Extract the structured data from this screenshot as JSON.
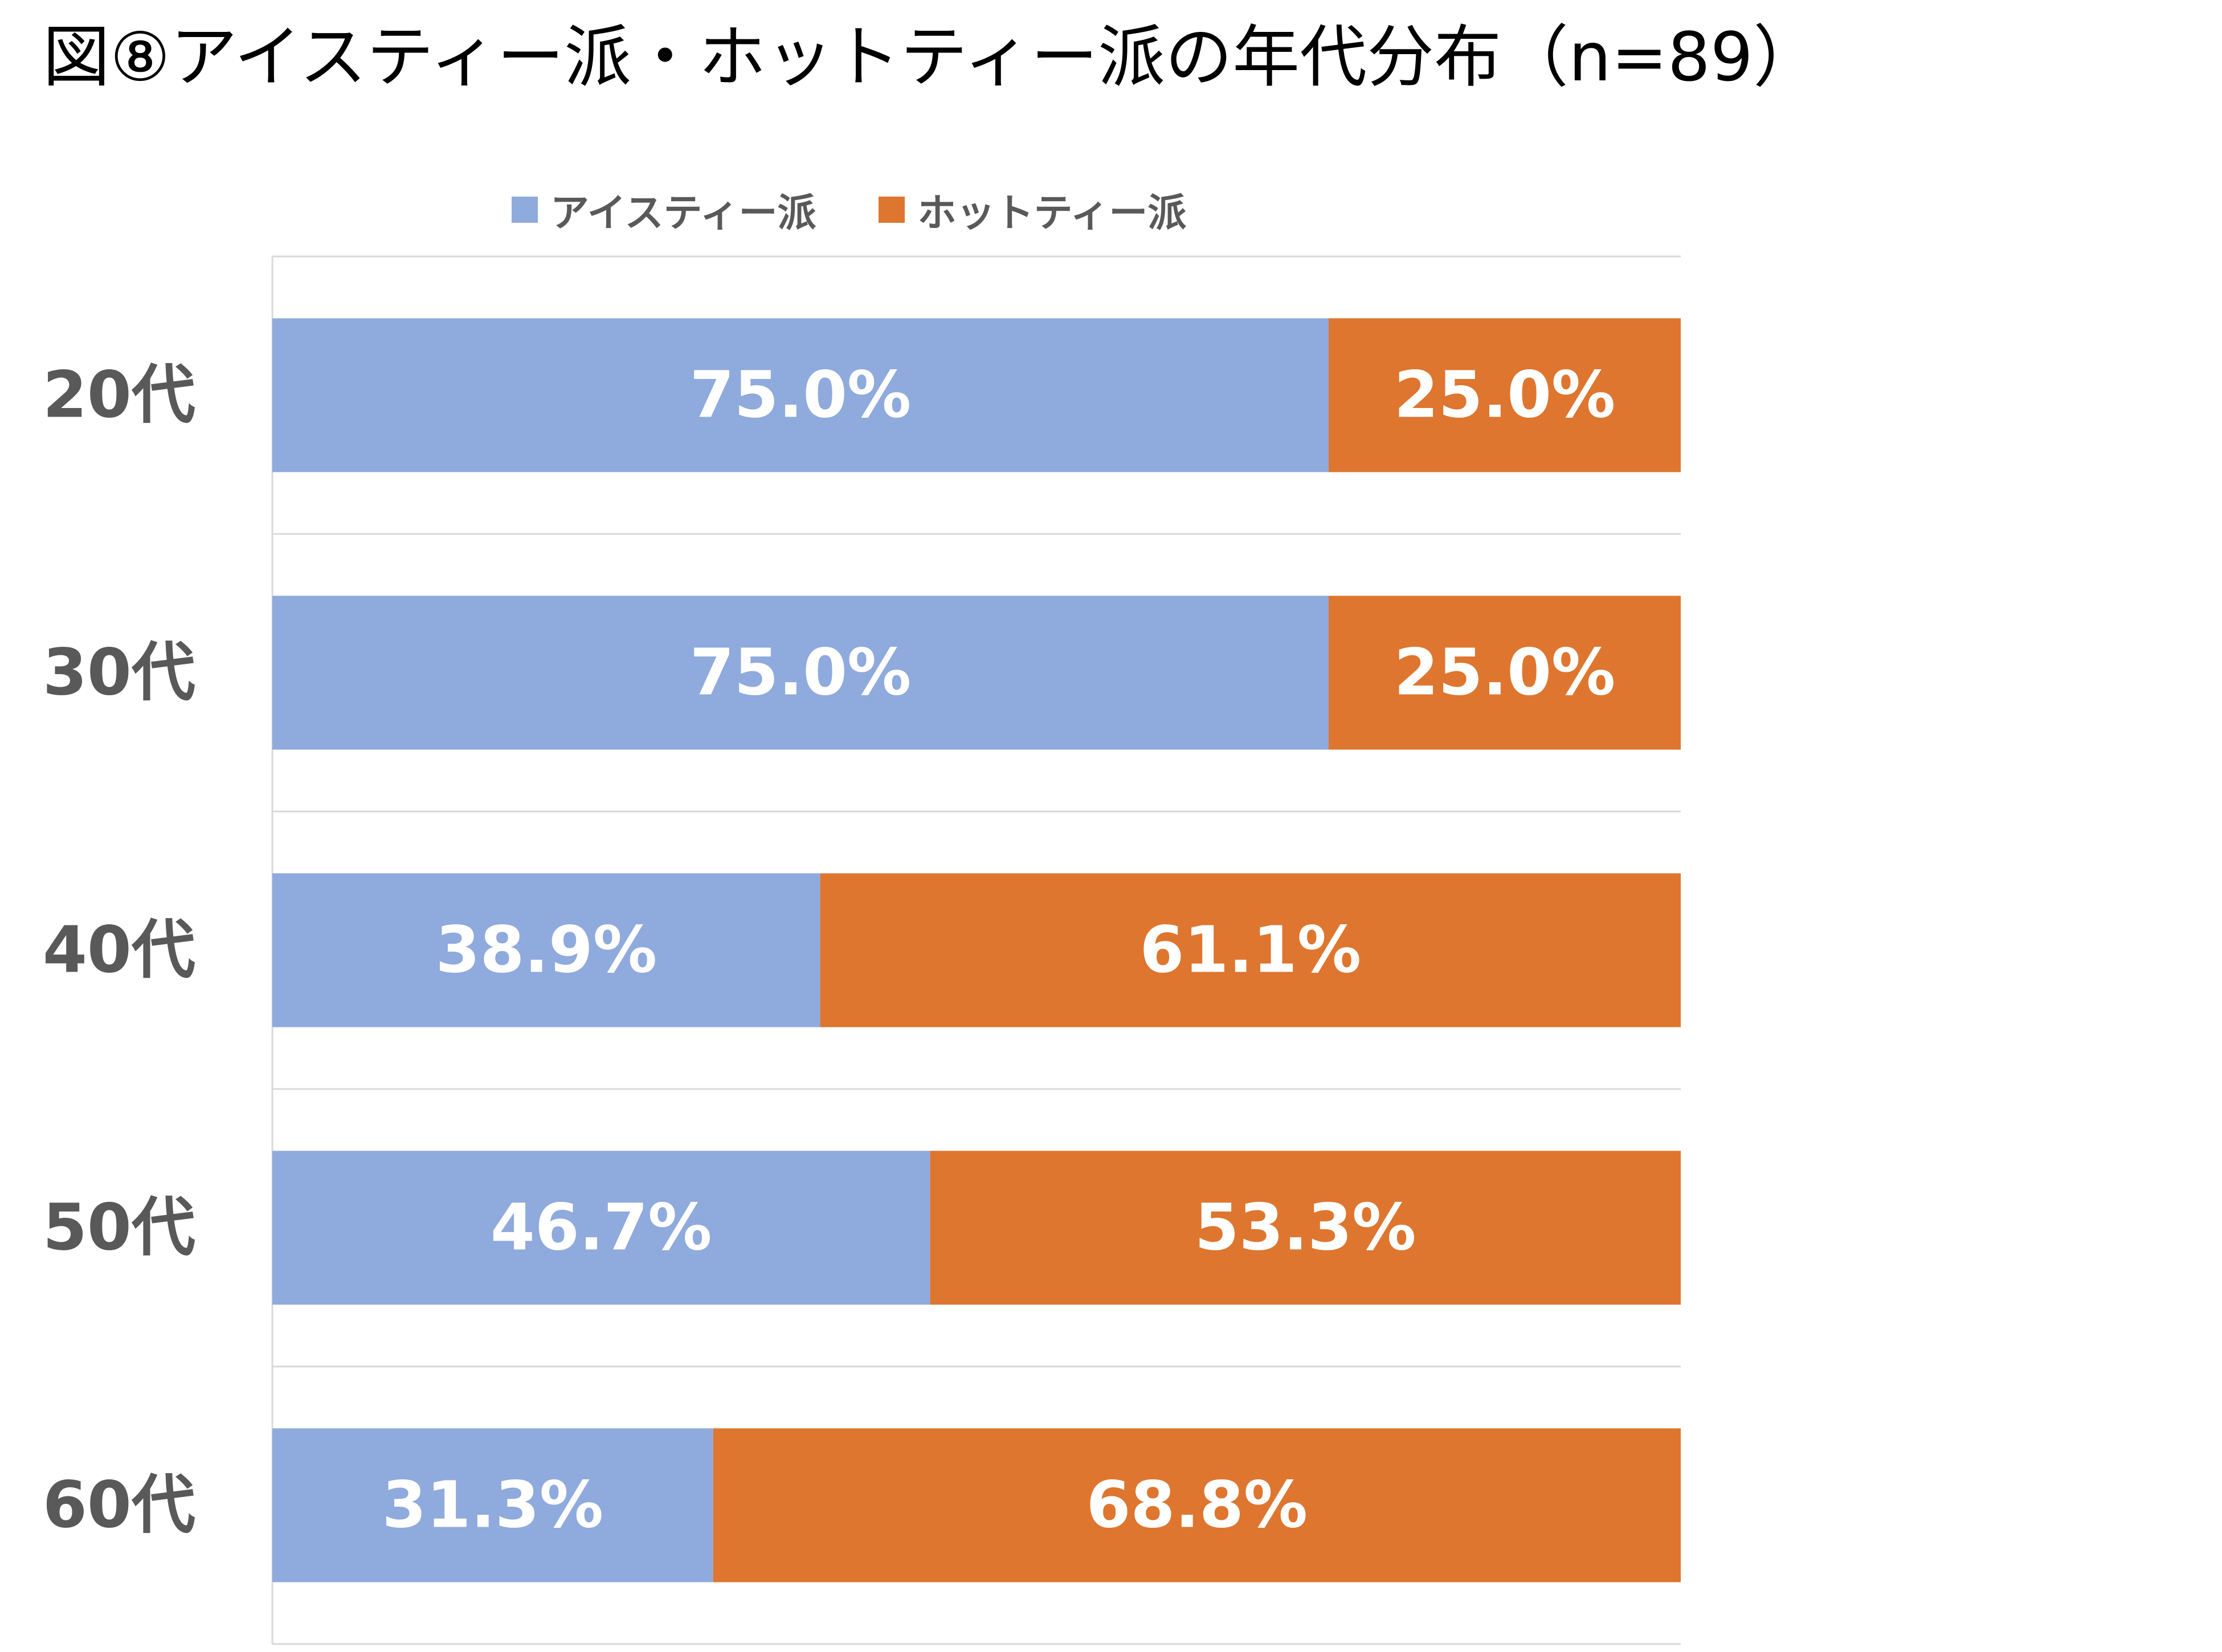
{
  "title": "図⑧アイスティー派・ホットティー派の年代分布（n=89）",
  "legend": {
    "items": [
      {
        "label": "アイスティー派",
        "color": "#8FAADC"
      },
      {
        "label": "ホットティー派",
        "color": "#DE762F"
      }
    ]
  },
  "chart_data": {
    "type": "bar",
    "orientation": "horizontal",
    "stacked": "100%",
    "title": "図⑧アイスティー派・ホットティー派の年代分布（n=89）",
    "categories": [
      "20代",
      "30代",
      "40代",
      "50代",
      "60代"
    ],
    "series": [
      {
        "name": "アイスティー派",
        "color": "#8FAADC",
        "values": [
          75.0,
          75.0,
          38.9,
          46.7,
          31.3
        ],
        "labels": [
          "75.0%",
          "75.0%",
          "38.9%",
          "46.7%",
          "31.3%"
        ]
      },
      {
        "name": "ホットティー派",
        "color": "#DE762F",
        "values": [
          25.0,
          25.0,
          61.1,
          53.3,
          68.8
        ],
        "labels": [
          "25.0%",
          "25.0%",
          "61.1%",
          "53.3%",
          "68.8%"
        ]
      }
    ],
    "xlim": [
      0,
      100
    ],
    "grid": true,
    "legend_position": "top",
    "xaxis_visible": false
  }
}
